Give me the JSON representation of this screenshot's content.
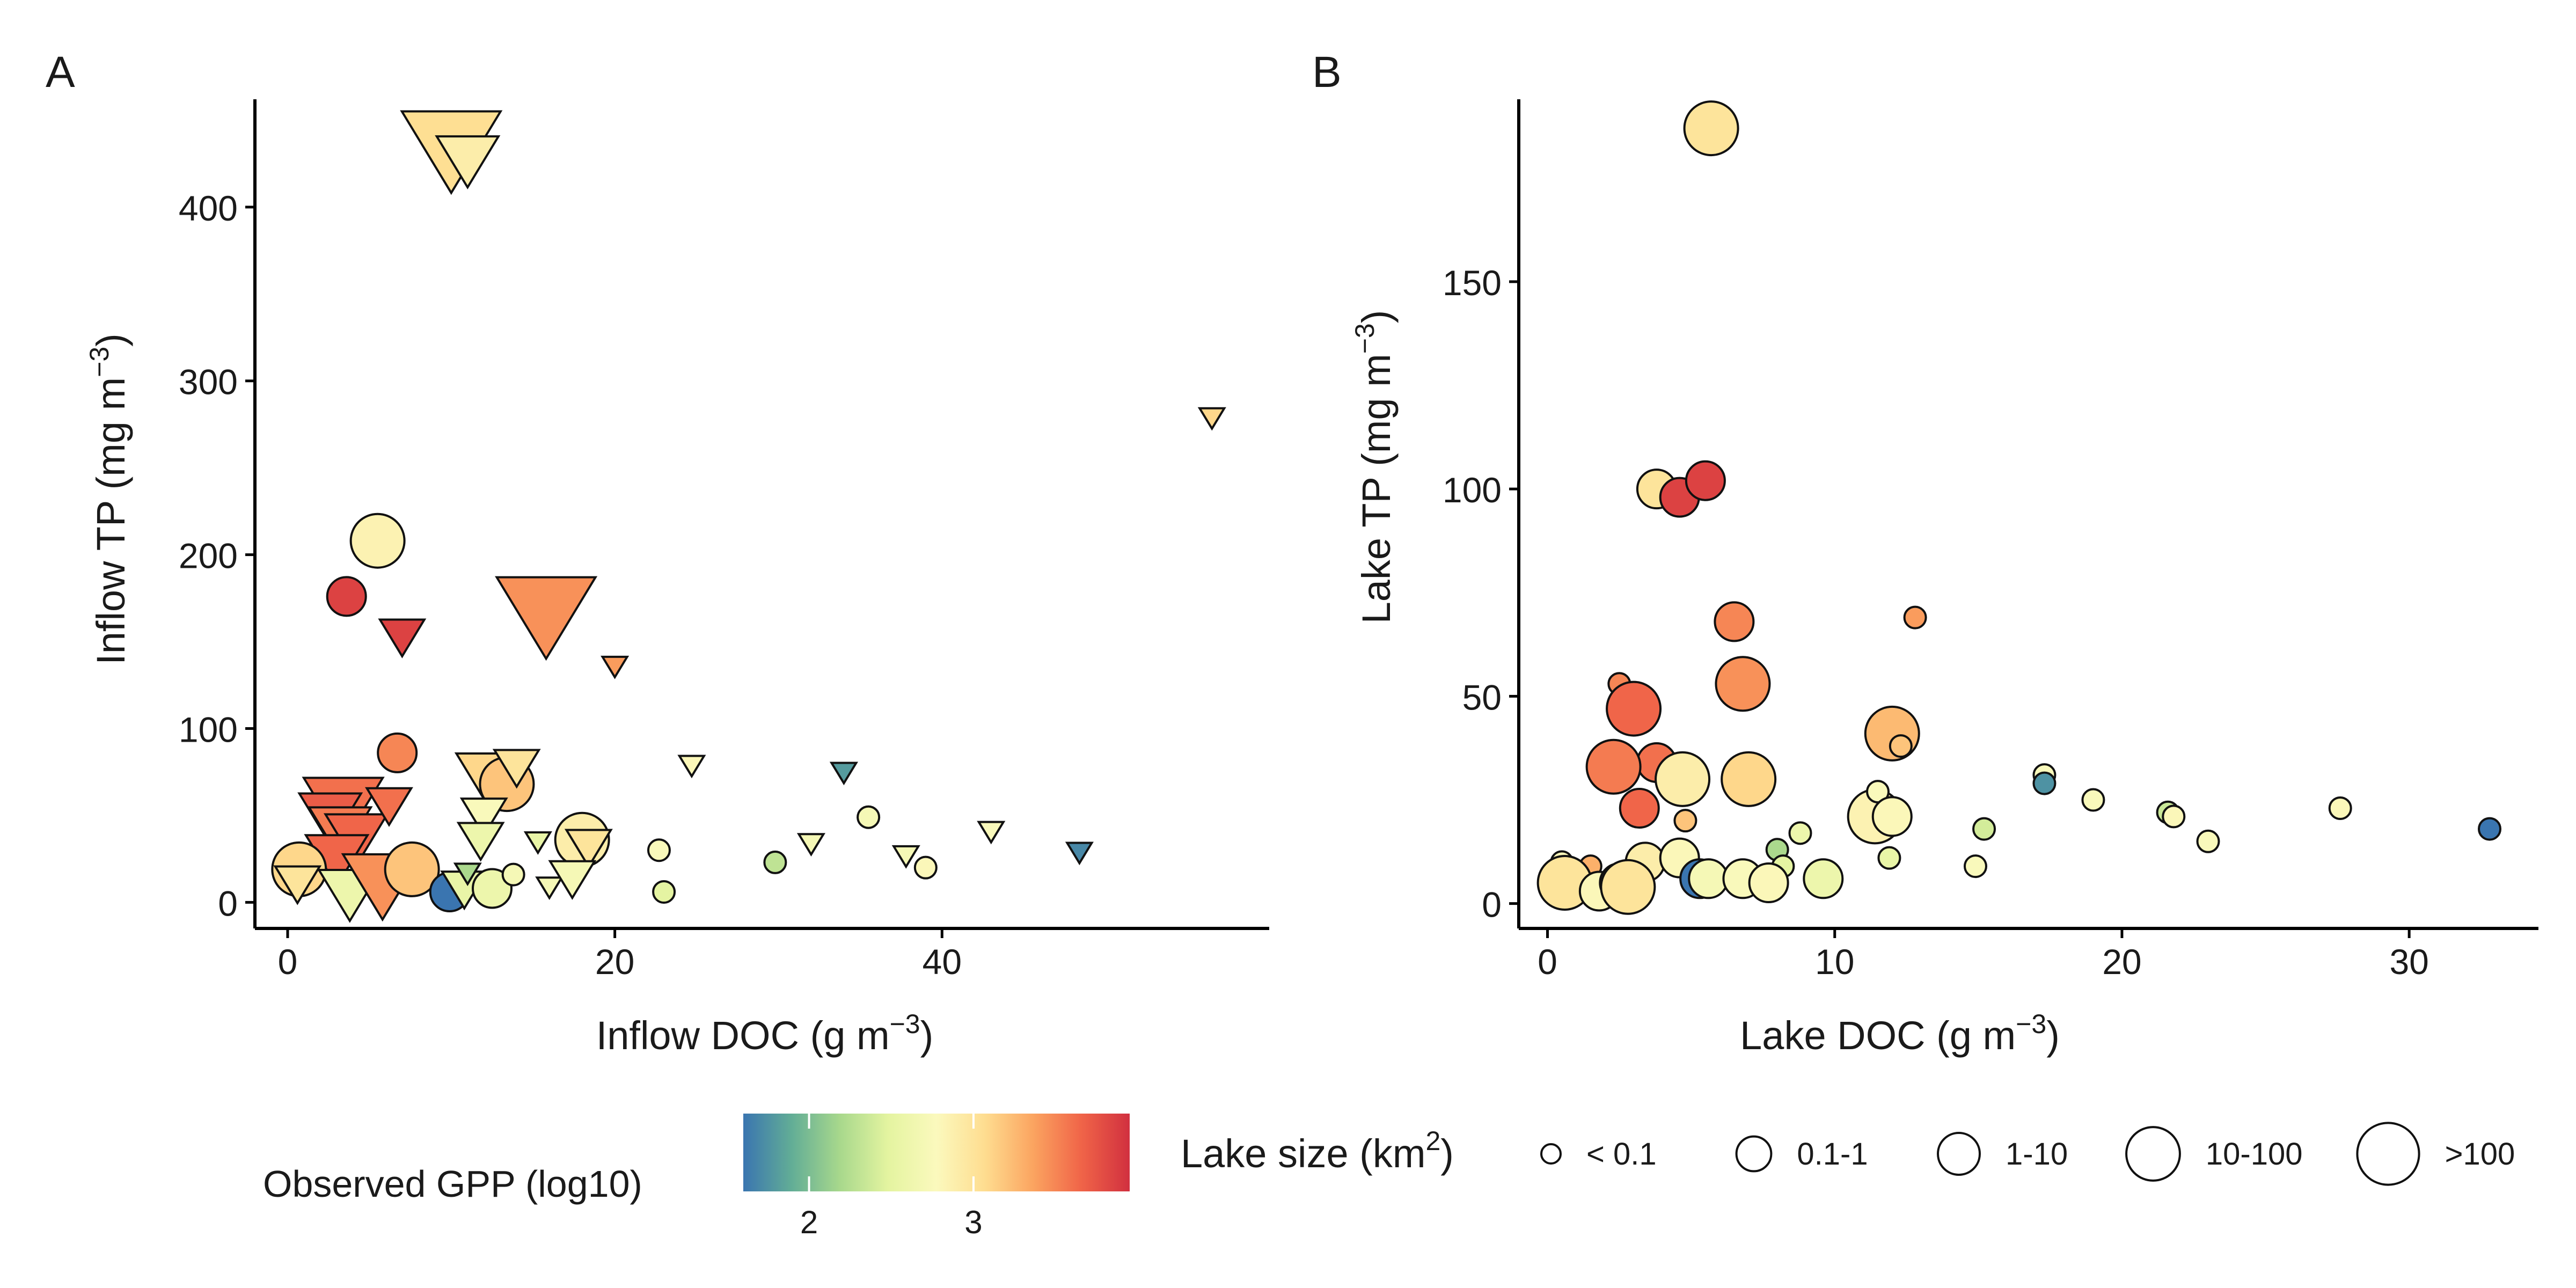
{
  "chart_data": [
    {
      "type": "scatter",
      "panel_label": "A",
      "xlabel": "Inflow DOC (g m",
      "ylabel": "Inflow TP (mg m",
      "unit_exponent": "−3",
      "unit_close": ")",
      "xlim": [
        -2,
        60
      ],
      "ylim": [
        -15,
        462
      ],
      "xticks": [
        0,
        20,
        40
      ],
      "yticks": [
        0,
        100,
        200,
        300,
        400
      ],
      "points": [
        {
          "x": 10.0,
          "y": 438,
          "shape": "triangle",
          "size": ">100",
          "gpp": 3.05
        },
        {
          "x": 11.0,
          "y": 430,
          "shape": "triangle",
          "size": "1-10",
          "gpp": 2.9
        },
        {
          "x": 56.5,
          "y": 280,
          "shape": "triangle",
          "size": "< 0.1",
          "gpp": 3.1
        },
        {
          "x": 5.5,
          "y": 208,
          "shape": "circle",
          "size": "1-10",
          "gpp": 2.85
        },
        {
          "x": 3.6,
          "y": 176,
          "shape": "circle",
          "size": "0.1-1",
          "gpp": 3.85
        },
        {
          "x": 7.0,
          "y": 155,
          "shape": "triangle",
          "size": "0.1-1",
          "gpp": 3.85
        },
        {
          "x": 15.8,
          "y": 170,
          "shape": "triangle",
          "size": ">100",
          "gpp": 3.45
        },
        {
          "x": 20.0,
          "y": 137,
          "shape": "triangle",
          "size": "< 0.1",
          "gpp": 3.4
        },
        {
          "x": 6.7,
          "y": 86,
          "shape": "circle",
          "size": "0.1-1",
          "gpp": 3.5
        },
        {
          "x": 12.2,
          "y": 75,
          "shape": "triangle",
          "size": "1-10",
          "gpp": 3.1
        },
        {
          "x": 13.4,
          "y": 68,
          "shape": "circle",
          "size": "1-10",
          "gpp": 3.2
        },
        {
          "x": 14.0,
          "y": 80,
          "shape": "triangle",
          "size": "0.1-1",
          "gpp": 3.0
        },
        {
          "x": 24.7,
          "y": 80,
          "shape": "triangle",
          "size": "< 0.1",
          "gpp": 2.8
        },
        {
          "x": 34.0,
          "y": 76,
          "shape": "triangle",
          "size": "< 0.1",
          "gpp": 1.8
        },
        {
          "x": 3.4,
          "y": 58,
          "shape": "triangle",
          "size": "10-100",
          "gpp": 3.6
        },
        {
          "x": 2.6,
          "y": 52,
          "shape": "triangle",
          "size": "1-10",
          "gpp": 3.7
        },
        {
          "x": 3.2,
          "y": 44,
          "shape": "triangle",
          "size": "1-10",
          "gpp": 3.55
        },
        {
          "x": 4.2,
          "y": 40,
          "shape": "triangle",
          "size": "1-10",
          "gpp": 3.65
        },
        {
          "x": 6.2,
          "y": 58,
          "shape": "triangle",
          "size": "0.1-1",
          "gpp": 3.6
        },
        {
          "x": 3.0,
          "y": 28,
          "shape": "triangle",
          "size": "1-10",
          "gpp": 3.65
        },
        {
          "x": 12.0,
          "y": 52,
          "shape": "triangle",
          "size": "0.1-1",
          "gpp": 2.75
        },
        {
          "x": 11.8,
          "y": 38,
          "shape": "triangle",
          "size": "0.1-1",
          "gpp": 2.6
        },
        {
          "x": 15.3,
          "y": 36,
          "shape": "triangle",
          "size": "< 0.1",
          "gpp": 2.55
        },
        {
          "x": 18.0,
          "y": 36,
          "shape": "circle",
          "size": "1-10",
          "gpp": 2.9
        },
        {
          "x": 18.4,
          "y": 34,
          "shape": "triangle",
          "size": "0.1-1",
          "gpp": 3.0
        },
        {
          "x": 22.7,
          "y": 30,
          "shape": "circle",
          "size": "< 0.1",
          "gpp": 2.75
        },
        {
          "x": 29.8,
          "y": 23,
          "shape": "circle",
          "size": "< 0.1",
          "gpp": 2.3
        },
        {
          "x": 32.0,
          "y": 35,
          "shape": "triangle",
          "size": "< 0.1",
          "gpp": 2.7
        },
        {
          "x": 35.5,
          "y": 49,
          "shape": "circle",
          "size": "< 0.1",
          "gpp": 2.7
        },
        {
          "x": 37.8,
          "y": 28,
          "shape": "triangle",
          "size": "< 0.1",
          "gpp": 2.7
        },
        {
          "x": 39.0,
          "y": 20,
          "shape": "circle",
          "size": "< 0.1",
          "gpp": 2.8
        },
        {
          "x": 43.0,
          "y": 42,
          "shape": "triangle",
          "size": "< 0.1",
          "gpp": 2.75
        },
        {
          "x": 48.4,
          "y": 30,
          "shape": "triangle",
          "size": "< 0.1",
          "gpp": 1.7
        },
        {
          "x": 0.7,
          "y": 19,
          "shape": "circle",
          "size": "1-10",
          "gpp": 3.1
        },
        {
          "x": 0.6,
          "y": 13,
          "shape": "triangle",
          "size": "0.1-1",
          "gpp": 3.0
        },
        {
          "x": 3.8,
          "y": 8,
          "shape": "triangle",
          "size": "1-10",
          "gpp": 2.6
        },
        {
          "x": 5.8,
          "y": 14,
          "shape": "triangle",
          "size": "10-100",
          "gpp": 3.45
        },
        {
          "x": 7.6,
          "y": 19,
          "shape": "circle",
          "size": "1-10",
          "gpp": 3.2
        },
        {
          "x": 9.9,
          "y": 6,
          "shape": "circle",
          "size": "0.1-1",
          "gpp": 1.6
        },
        {
          "x": 10.8,
          "y": 10,
          "shape": "triangle",
          "size": "0.1-1",
          "gpp": 2.55
        },
        {
          "x": 11.0,
          "y": 18,
          "shape": "triangle",
          "size": "< 0.1",
          "gpp": 2.2
        },
        {
          "x": 12.5,
          "y": 8,
          "shape": "circle",
          "size": "0.1-1",
          "gpp": 2.6
        },
        {
          "x": 13.8,
          "y": 16,
          "shape": "circle",
          "size": "< 0.1",
          "gpp": 2.7
        },
        {
          "x": 16.0,
          "y": 10,
          "shape": "triangle",
          "size": "< 0.1",
          "gpp": 2.7
        },
        {
          "x": 17.4,
          "y": 16,
          "shape": "triangle",
          "size": "0.1-1",
          "gpp": 2.7
        },
        {
          "x": 23.0,
          "y": 6,
          "shape": "circle",
          "size": "< 0.1",
          "gpp": 2.5
        }
      ]
    },
    {
      "type": "scatter",
      "panel_label": "B",
      "xlabel": "Lake DOC (g m",
      "ylabel": "Lake TP (mg m",
      "unit_exponent": "−3",
      "unit_close": ")",
      "xlim": [
        -1,
        34.5
      ],
      "ylim": [
        -6,
        194
      ],
      "xticks": [
        0,
        10,
        20,
        30
      ],
      "yticks": [
        0,
        50,
        100,
        150
      ],
      "points": [
        {
          "x": 5.7,
          "y": 187,
          "shape": "circle",
          "size": "1-10",
          "gpp": 3.0
        },
        {
          "x": 3.8,
          "y": 100,
          "shape": "circle",
          "size": "0.1-1",
          "gpp": 3.0
        },
        {
          "x": 4.6,
          "y": 98,
          "shape": "circle",
          "size": "0.1-1",
          "gpp": 3.85
        },
        {
          "x": 5.5,
          "y": 102,
          "shape": "circle",
          "size": "0.1-1",
          "gpp": 3.85
        },
        {
          "x": 6.5,
          "y": 68,
          "shape": "circle",
          "size": "0.1-1",
          "gpp": 3.5
        },
        {
          "x": 12.8,
          "y": 69,
          "shape": "circle",
          "size": "< 0.1",
          "gpp": 3.4
        },
        {
          "x": 6.8,
          "y": 53,
          "shape": "circle",
          "size": "1-10",
          "gpp": 3.45
        },
        {
          "x": 2.5,
          "y": 53,
          "shape": "circle",
          "size": "< 0.1",
          "gpp": 3.5
        },
        {
          "x": 3.0,
          "y": 47,
          "shape": "circle",
          "size": "1-10",
          "gpp": 3.65
        },
        {
          "x": 12.0,
          "y": 41,
          "shape": "circle",
          "size": "1-10",
          "gpp": 3.25
        },
        {
          "x": 12.3,
          "y": 38,
          "shape": "circle",
          "size": "< 0.1",
          "gpp": 3.2
        },
        {
          "x": 3.8,
          "y": 34,
          "shape": "circle",
          "size": "0.1-1",
          "gpp": 3.6
        },
        {
          "x": 2.3,
          "y": 33,
          "shape": "circle",
          "size": "1-10",
          "gpp": 3.55
        },
        {
          "x": 4.7,
          "y": 30,
          "shape": "circle",
          "size": "1-10",
          "gpp": 2.9
        },
        {
          "x": 7.0,
          "y": 30,
          "shape": "circle",
          "size": "1-10",
          "gpp": 3.1
        },
        {
          "x": 3.2,
          "y": 23,
          "shape": "circle",
          "size": "0.1-1",
          "gpp": 3.65
        },
        {
          "x": 4.8,
          "y": 20,
          "shape": "circle",
          "size": "< 0.1",
          "gpp": 3.2
        },
        {
          "x": 11.4,
          "y": 21,
          "shape": "circle",
          "size": "1-10",
          "gpp": 2.85
        },
        {
          "x": 11.5,
          "y": 27,
          "shape": "circle",
          "size": "< 0.1",
          "gpp": 2.75
        },
        {
          "x": 12.0,
          "y": 21,
          "shape": "circle",
          "size": "0.1-1",
          "gpp": 2.8
        },
        {
          "x": 8.8,
          "y": 17,
          "shape": "circle",
          "size": "< 0.1",
          "gpp": 2.6
        },
        {
          "x": 15.2,
          "y": 18,
          "shape": "circle",
          "size": "< 0.1",
          "gpp": 2.4
        },
        {
          "x": 17.3,
          "y": 31,
          "shape": "circle",
          "size": "< 0.1",
          "gpp": 2.75
        },
        {
          "x": 17.3,
          "y": 29,
          "shape": "circle",
          "size": "< 0.1",
          "gpp": 1.75
        },
        {
          "x": 19.0,
          "y": 25,
          "shape": "circle",
          "size": "< 0.1",
          "gpp": 2.75
        },
        {
          "x": 21.6,
          "y": 22,
          "shape": "circle",
          "size": "< 0.1",
          "gpp": 2.35
        },
        {
          "x": 21.8,
          "y": 21,
          "shape": "circle",
          "size": "< 0.1",
          "gpp": 2.8
        },
        {
          "x": 23.0,
          "y": 15,
          "shape": "circle",
          "size": "< 0.1",
          "gpp": 2.75
        },
        {
          "x": 27.6,
          "y": 23,
          "shape": "circle",
          "size": "< 0.1",
          "gpp": 2.8
        },
        {
          "x": 32.8,
          "y": 18,
          "shape": "circle",
          "size": "< 0.1",
          "gpp": 1.6
        },
        {
          "x": 8.0,
          "y": 13,
          "shape": "circle",
          "size": "< 0.1",
          "gpp": 2.2
        },
        {
          "x": 8.2,
          "y": 9,
          "shape": "circle",
          "size": "< 0.1",
          "gpp": 2.5
        },
        {
          "x": 11.9,
          "y": 11,
          "shape": "circle",
          "size": "< 0.1",
          "gpp": 2.55
        },
        {
          "x": 14.9,
          "y": 9,
          "shape": "circle",
          "size": "< 0.1",
          "gpp": 2.75
        },
        {
          "x": 0.5,
          "y": 10,
          "shape": "circle",
          "size": "< 0.1",
          "gpp": 2.8
        },
        {
          "x": 1.5,
          "y": 9,
          "shape": "circle",
          "size": "< 0.1",
          "gpp": 3.3
        },
        {
          "x": 3.4,
          "y": 10,
          "shape": "circle",
          "size": "0.1-1",
          "gpp": 2.9
        },
        {
          "x": 4.6,
          "y": 11,
          "shape": "circle",
          "size": "0.1-1",
          "gpp": 2.8
        },
        {
          "x": 5.3,
          "y": 6,
          "shape": "circle",
          "size": "0.1-1",
          "gpp": 1.6
        },
        {
          "x": 5.6,
          "y": 6,
          "shape": "circle",
          "size": "0.1-1",
          "gpp": 2.7
        },
        {
          "x": 6.8,
          "y": 6,
          "shape": "circle",
          "size": "0.1-1",
          "gpp": 2.75
        },
        {
          "x": 7.7,
          "y": 5,
          "shape": "circle",
          "size": "0.1-1",
          "gpp": 2.8
        },
        {
          "x": 9.6,
          "y": 6,
          "shape": "circle",
          "size": "0.1-1",
          "gpp": 2.6
        },
        {
          "x": 0.6,
          "y": 5,
          "shape": "circle",
          "size": "1-10",
          "gpp": 3.0
        },
        {
          "x": 1.8,
          "y": 3,
          "shape": "circle",
          "size": "0.1-1",
          "gpp": 2.8
        },
        {
          "x": 2.5,
          "y": 5,
          "shape": "circle",
          "size": "0.1-1",
          "gpp": 3.2
        },
        {
          "x": 2.8,
          "y": 4,
          "shape": "circle",
          "size": "1-10",
          "gpp": 3.0
        }
      ]
    }
  ],
  "legend": {
    "color": {
      "title": "Observed GPP (log10)",
      "min": 1.6,
      "max": 3.95,
      "ticks": [
        2,
        3
      ],
      "colors": [
        "#3a75b0",
        "#62ad96",
        "#a8d88c",
        "#e4f4a0",
        "#fbf9bd",
        "#fedd90",
        "#fba460",
        "#f06448",
        "#d1303f"
      ]
    },
    "size": {
      "title": "Lake size (km",
      "title_exponent": "2",
      "title_close": ")",
      "classes": [
        "< 0.1",
        "0.1-1",
        "1-10",
        "10-100",
        ">100"
      ]
    }
  }
}
